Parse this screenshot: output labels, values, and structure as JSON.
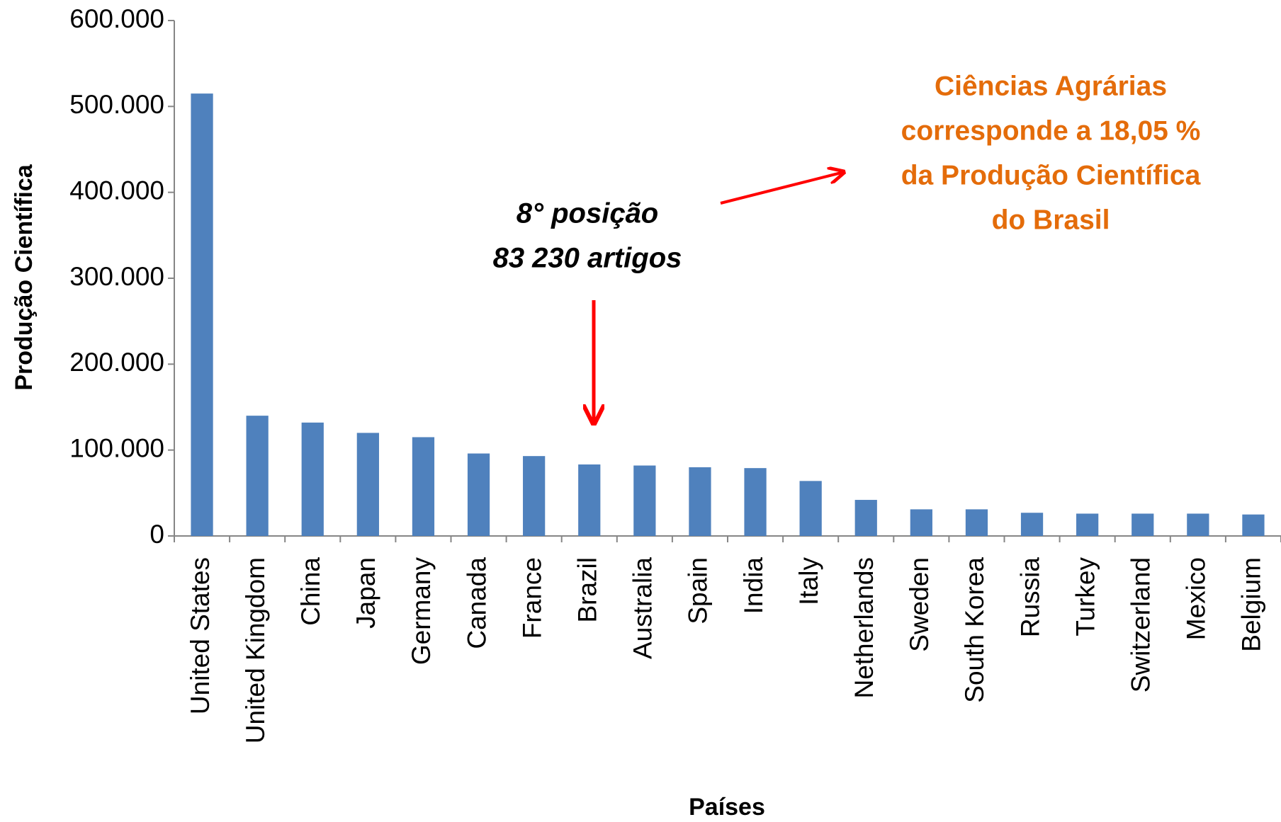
{
  "chart_data": {
    "type": "bar",
    "categories": [
      "United States",
      "United Kingdom",
      "China",
      "Japan",
      "Germany",
      "Canada",
      "France",
      "Brazil",
      "Australia",
      "Spain",
      "India",
      "Italy",
      "Netherlands",
      "Sweden",
      "South Korea",
      "Russia",
      "Turkey",
      "Switzerland",
      "Mexico",
      "Belgium"
    ],
    "values": [
      515000,
      140000,
      132000,
      120000,
      115000,
      96000,
      93000,
      83230,
      82000,
      80000,
      79000,
      64000,
      42000,
      31000,
      31000,
      27000,
      26000,
      26000,
      26000,
      25000
    ],
    "color": "#4f81bd",
    "ylim": [
      0,
      600000
    ],
    "yticks": [
      0,
      {
        "value": 100000,
        "label": "100.000"
      },
      {
        "value": 200000,
        "label": "200.000"
      },
      {
        "value": 300000,
        "label": "300.000"
      },
      {
        "value": 400000,
        "label": "400.000"
      },
      {
        "value": 500000,
        "label": "500.000"
      },
      {
        "value": 600000,
        "label": "600.000"
      }
    ],
    "xlabel": "Países",
    "ylabel": "Produção Científica",
    "annotations": {
      "position": [
        "8° posição",
        "83 230 artigos"
      ],
      "note": [
        "Ciências Agrárias",
        "corresponde a 18,05 %",
        "da Produção Científica",
        "do Brasil"
      ]
    }
  }
}
